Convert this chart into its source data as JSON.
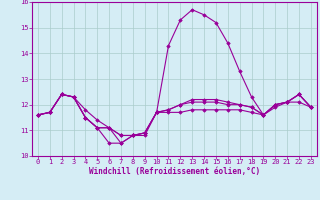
{
  "xlabel": "Windchill (Refroidissement éolien,°C)",
  "hours": [
    0,
    1,
    2,
    3,
    4,
    5,
    6,
    7,
    8,
    9,
    10,
    11,
    12,
    13,
    14,
    15,
    16,
    17,
    18,
    19,
    20,
    21,
    22,
    23
  ],
  "line1": [
    11.6,
    11.7,
    12.4,
    12.3,
    11.5,
    11.1,
    11.1,
    10.5,
    10.8,
    10.8,
    11.7,
    11.7,
    11.7,
    11.8,
    11.8,
    11.8,
    11.8,
    11.8,
    11.7,
    11.6,
    11.9,
    12.1,
    12.1,
    11.9
  ],
  "line2": [
    11.6,
    11.7,
    12.4,
    12.3,
    11.5,
    11.1,
    10.5,
    10.5,
    10.8,
    10.9,
    11.7,
    14.3,
    15.3,
    15.7,
    15.5,
    15.2,
    14.4,
    13.3,
    12.3,
    11.6,
    12.0,
    12.1,
    12.4,
    11.9
  ],
  "line3": [
    11.6,
    11.7,
    12.4,
    12.3,
    11.5,
    11.1,
    11.1,
    10.8,
    10.8,
    10.9,
    11.7,
    11.8,
    12.0,
    12.1,
    12.1,
    12.1,
    12.0,
    12.0,
    11.9,
    11.6,
    12.0,
    12.1,
    12.4,
    11.9
  ],
  "line4": [
    11.6,
    11.7,
    12.4,
    12.3,
    11.8,
    11.4,
    11.1,
    10.8,
    10.8,
    10.9,
    11.7,
    11.8,
    12.0,
    12.2,
    12.2,
    12.2,
    12.1,
    12.0,
    11.9,
    11.6,
    12.0,
    12.1,
    12.4,
    11.9
  ],
  "line_color": "#990099",
  "bg_color": "#d5edf5",
  "grid_color": "#aacccc",
  "ylim": [
    10.0,
    16.0
  ],
  "yticks": [
    10,
    11,
    12,
    13,
    14,
    15,
    16
  ],
  "marker": "D",
  "markersize": 1.8,
  "linewidth": 0.8,
  "tick_fontsize": 5.0,
  "xlabel_fontsize": 5.5
}
